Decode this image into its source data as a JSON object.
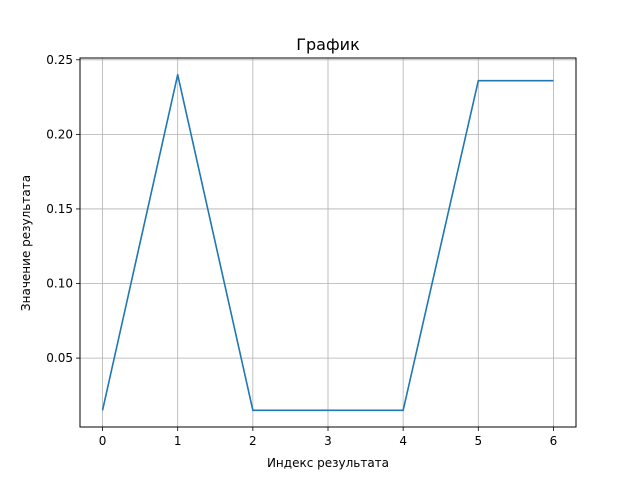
{
  "chart_data": {
    "type": "line",
    "title": "График",
    "xlabel": "Индекс результата",
    "ylabel": "Значение результата",
    "x": [
      0,
      1,
      2,
      3,
      4,
      5,
      6
    ],
    "series": [
      {
        "values": [
          0.015,
          0.24,
          0.015,
          0.015,
          0.015,
          0.236,
          0.236
        ],
        "color": "#1f77b4"
      }
    ],
    "xticks": [
      0,
      1,
      2,
      3,
      4,
      5,
      6
    ],
    "xtick_labels": [
      "0",
      "1",
      "2",
      "3",
      "4",
      "5",
      "6"
    ],
    "yticks": [
      0.05,
      0.1,
      0.15,
      0.2,
      0.25
    ],
    "ytick_labels": [
      "0.05",
      "0.10",
      "0.15",
      "0.20",
      "0.25"
    ],
    "xlim": [
      -0.3,
      6.3
    ],
    "ylim": [
      0.0038,
      0.2512
    ],
    "grid": true,
    "colors": {
      "grid": "#b0b0b0",
      "axes": "#000000"
    }
  }
}
